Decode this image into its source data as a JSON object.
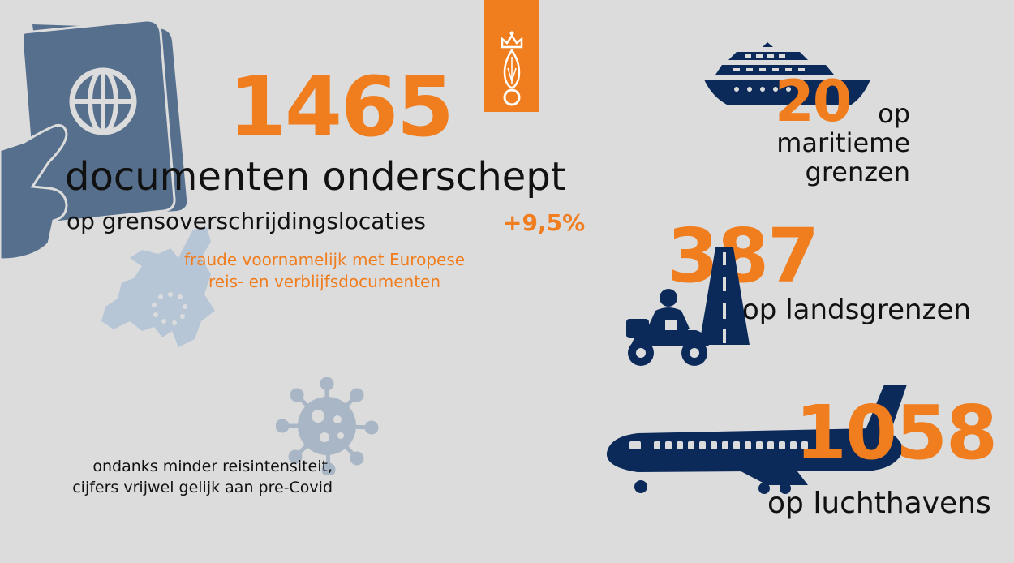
{
  "colors": {
    "background": "#dcdcdc",
    "orange": "#f07d1e",
    "navy": "#0b2a5a",
    "slate": "#566f8c",
    "light_blue": "#b7c6d6",
    "text": "#111111"
  },
  "main": {
    "number": "1465",
    "title": "documenten onderschept",
    "subtitle": "op grensoverschrijdingslocaties",
    "change": "+9,5%",
    "note_line1": "fraude voornamelijk met Europese",
    "note_line2": "reis- en verblijfsdocumenten"
  },
  "covid": {
    "line1": "ondanks minder reisintensiteit,",
    "line2": "cijfers vrijwel gelijk aan pre-Covid"
  },
  "maritime": {
    "number": "20",
    "line1": "op",
    "line2": "maritieme",
    "line3": "grenzen"
  },
  "land": {
    "number": "387",
    "label": "op landsgrenzen"
  },
  "airport": {
    "number": "1058",
    "label": "op luchthavens"
  },
  "icons": [
    "passport-icon",
    "europe-map-icon",
    "virus-icon",
    "ship-icon",
    "motorcycle-icon",
    "road-icon",
    "airplane-icon",
    "crown-grenade-logo"
  ]
}
